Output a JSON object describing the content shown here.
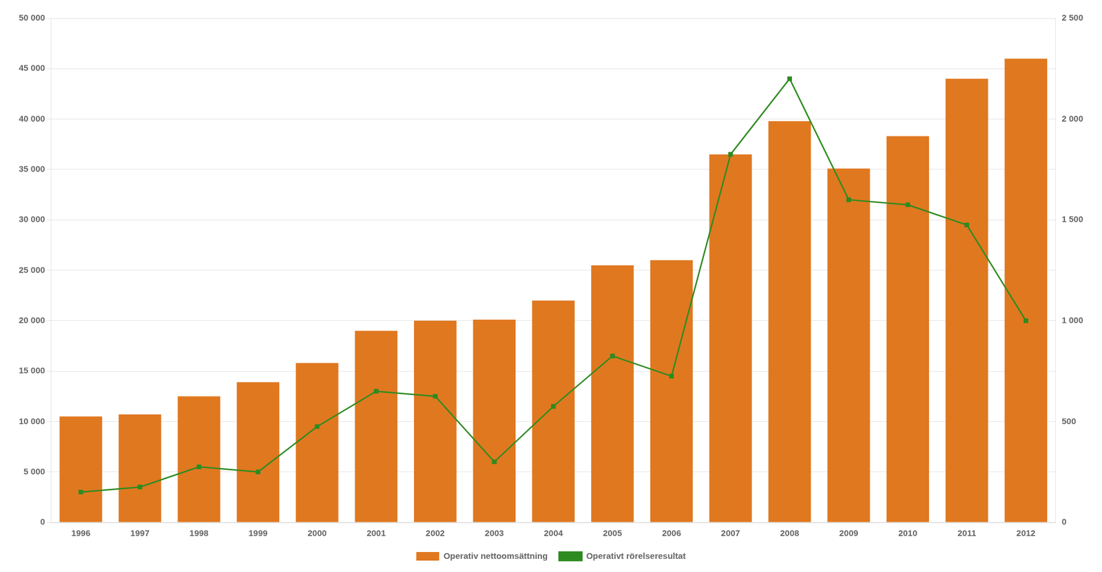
{
  "chart_data": {
    "type": "bar",
    "categories": [
      "1996",
      "1997",
      "1998",
      "1999",
      "2000",
      "2001",
      "2002",
      "2003",
      "2004",
      "2005",
      "2006",
      "2007",
      "2008",
      "2009",
      "2010",
      "2011",
      "2012"
    ],
    "series": [
      {
        "name": "Operativ nettoomsättning",
        "type": "bar",
        "color": "#E07820",
        "axis": "y",
        "values": [
          10500,
          10700,
          12500,
          13900,
          15800,
          19000,
          20000,
          20100,
          22000,
          25500,
          26000,
          36500,
          39800,
          35100,
          38300,
          44000,
          46000
        ]
      },
      {
        "name": "Operativt rörelseresultat",
        "type": "line",
        "color": "#2E8B20",
        "axis": "y2",
        "marker": "square",
        "line_style": "solid",
        "values": [
          150,
          175,
          275,
          250,
          475,
          650,
          625,
          300,
          575,
          825,
          725,
          1825,
          2200,
          1600,
          1575,
          1475,
          1000
        ]
      }
    ],
    "ylim": [
      0,
      50000
    ],
    "yticks": [
      0,
      {
        "value": 5000,
        "label": "5 000"
      },
      {
        "value": 10000,
        "label": "10 000"
      },
      {
        "value": 15000,
        "label": "15 000"
      },
      {
        "value": 20000,
        "label": "20 000"
      },
      {
        "value": 25000,
        "label": "25 000"
      },
      {
        "value": 30000,
        "label": "30 000"
      },
      {
        "value": 35000,
        "label": "35 000"
      },
      {
        "value": 40000,
        "label": "40 000"
      },
      {
        "value": 45000,
        "label": "45 000"
      },
      {
        "value": 50000,
        "label": "50 000"
      }
    ],
    "y2lim": [
      0,
      2500
    ],
    "y2ticks": [
      0,
      500,
      {
        "value": 1000,
        "label": "1 000"
      },
      {
        "value": 1500,
        "label": "1 500"
      },
      {
        "value": 2000,
        "label": "2 000"
      },
      {
        "value": 2500,
        "label": "2 500"
      }
    ],
    "grid": true,
    "legend": "bottom"
  }
}
